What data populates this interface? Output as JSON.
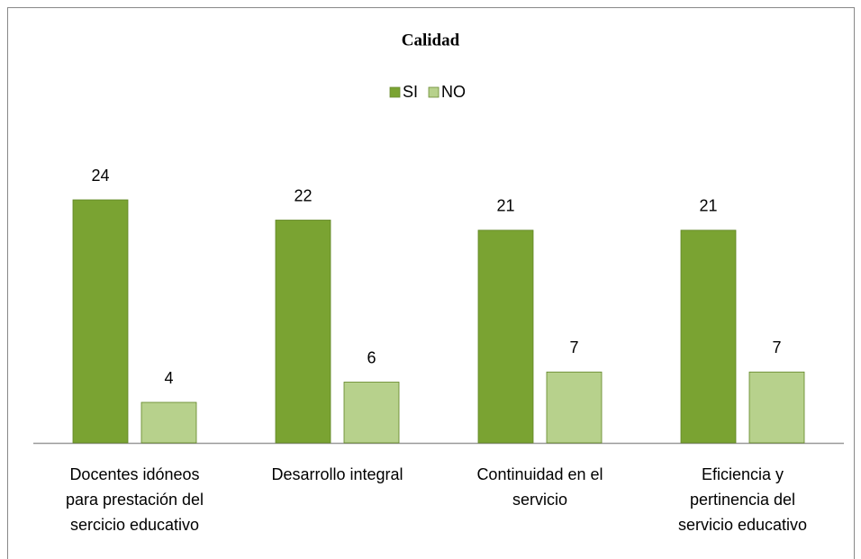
{
  "chart_data": {
    "type": "bar",
    "title": "Calidad",
    "categories": [
      [
        "Docentes idóneos",
        "para prestación del",
        "sercicio educativo"
      ],
      [
        "Desarrollo integral"
      ],
      [
        "Continuidad en el",
        "servicio"
      ],
      [
        "Eficiencia y",
        "pertinencia del",
        "servicio educativo"
      ]
    ],
    "series": [
      {
        "name": "SI",
        "color": "#7aa332",
        "values": [
          24,
          22,
          21,
          21
        ]
      },
      {
        "name": "NO",
        "color": "#b7d18c",
        "values": [
          4,
          6,
          7,
          7
        ]
      }
    ]
  }
}
